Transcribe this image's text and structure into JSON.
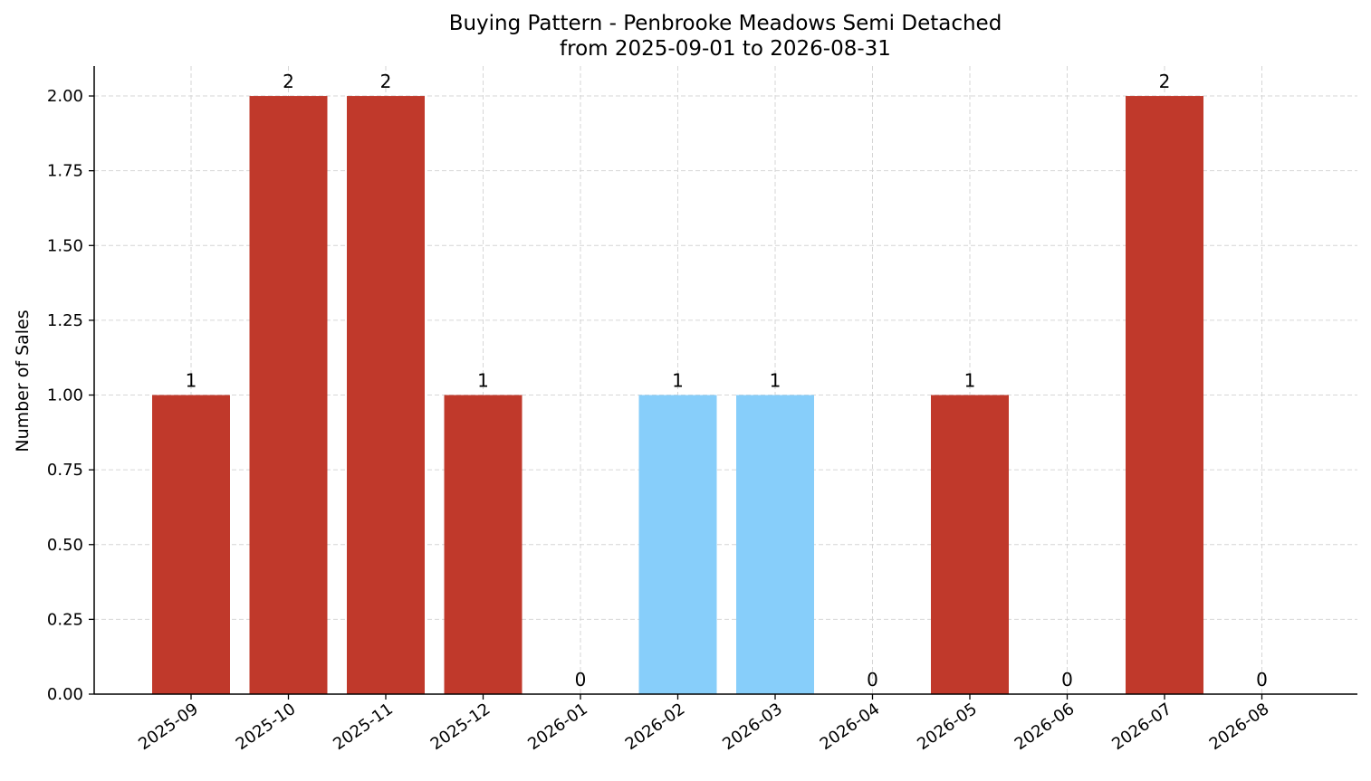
{
  "chart_data": {
    "type": "bar",
    "title": "Buying Pattern - Penbrooke Meadows Semi Detached",
    "subtitle": "from 2025-09-01 to 2026-08-31",
    "xlabel": "",
    "ylabel": "Number of Sales",
    "categories": [
      "2025-09",
      "2025-10",
      "2025-11",
      "2025-12",
      "2026-01",
      "2026-02",
      "2026-03",
      "2026-04",
      "2026-05",
      "2026-06",
      "2026-07",
      "2026-08"
    ],
    "values": [
      1,
      2,
      2,
      1,
      0,
      1,
      1,
      0,
      1,
      0,
      2,
      0
    ],
    "bar_colors": [
      "#c0392b",
      "#c0392b",
      "#c0392b",
      "#c0392b",
      "#c0392b",
      "#87cefa",
      "#87cefa",
      "#c0392b",
      "#c0392b",
      "#c0392b",
      "#c0392b",
      "#c0392b"
    ],
    "ylim": [
      0,
      2.1
    ],
    "yticks": [
      0,
      0.25,
      0.5,
      0.75,
      1.0,
      1.25,
      1.5,
      1.75,
      2.0
    ],
    "ytick_labels": [
      "0.00",
      "0.25",
      "0.50",
      "0.75",
      "1.00",
      "1.25",
      "1.50",
      "1.75",
      "2.00"
    ],
    "grid": true,
    "grid_color": "#d6d6d6",
    "legend": false
  }
}
